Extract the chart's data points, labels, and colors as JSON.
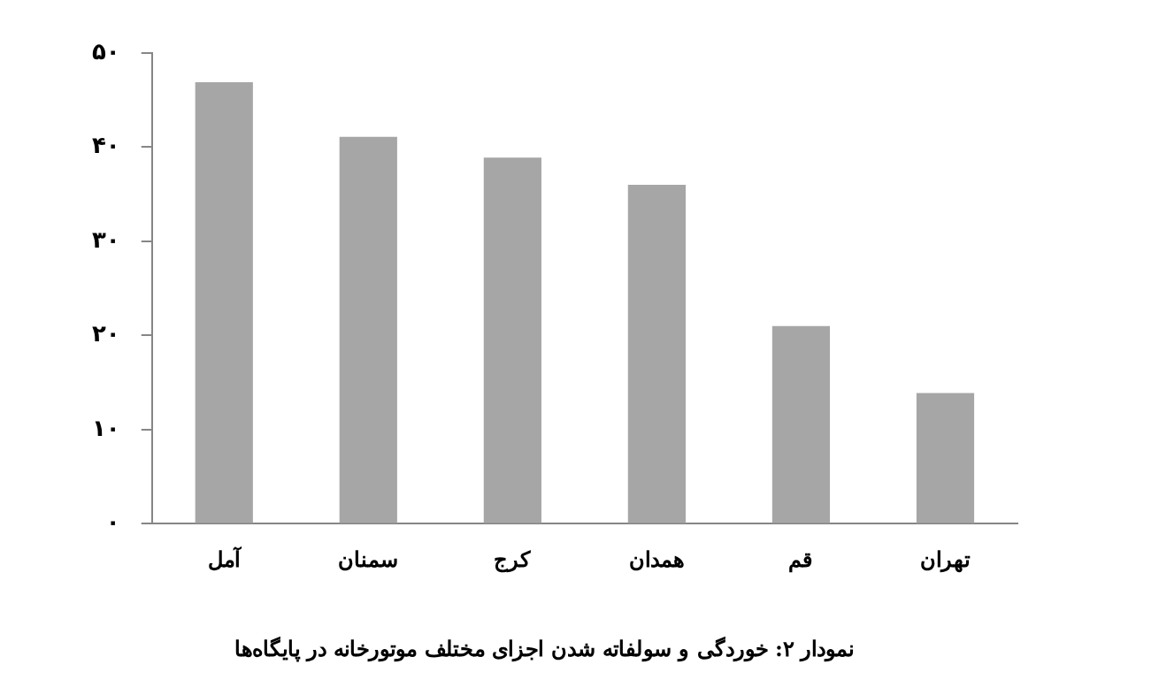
{
  "chart_data": {
    "type": "bar",
    "title": "نمودار ۲: خوردگی و سولفاته شدن اجزای مختلف موتورخانه در پایگاه‌ها",
    "categories": [
      "آمل",
      "سمنان",
      "کرج",
      "همدان",
      "قم",
      "تهران"
    ],
    "values": [
      46.9,
      41.1,
      38.9,
      36.0,
      21.0,
      13.9
    ],
    "color": "#a6a6a6",
    "ylim": [
      0,
      50
    ],
    "yticks": [
      {
        "value": 0,
        "label": "۰"
      },
      {
        "value": 10,
        "label": "۱۰"
      },
      {
        "value": 20,
        "label": "۲۰"
      },
      {
        "value": 30,
        "label": "۳۰"
      },
      {
        "value": 40,
        "label": "۴۰"
      },
      {
        "value": 50,
        "label": "۵۰"
      }
    ],
    "grid": false,
    "legend": false
  }
}
